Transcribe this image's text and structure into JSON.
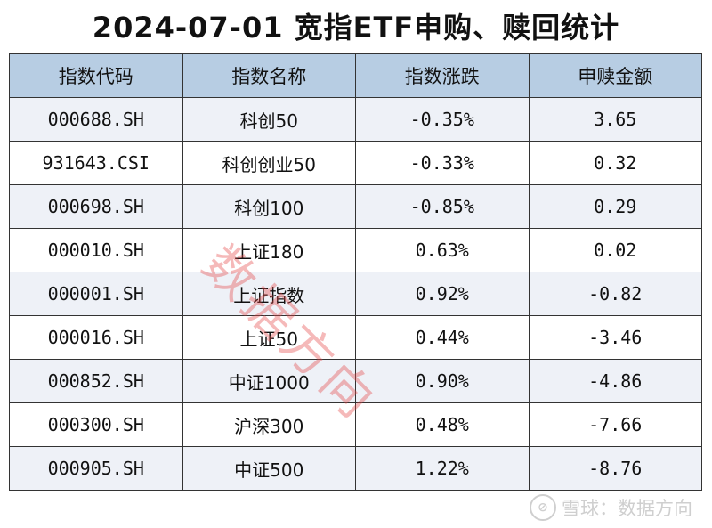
{
  "title": "2024-07-01 宽指ETF申购、赎回统计",
  "table": {
    "headers": [
      "指数代码",
      "指数名称",
      "指数涨跌",
      "申赎金额"
    ],
    "rows": [
      [
        "000688.SH",
        "科创50",
        "-0.35%",
        "3.65"
      ],
      [
        "931643.CSI",
        "科创创业50",
        "-0.33%",
        "0.32"
      ],
      [
        "000698.SH",
        "科创100",
        "-0.85%",
        "0.29"
      ],
      [
        "000010.SH",
        "上证180",
        "0.63%",
        "0.02"
      ],
      [
        "000001.SH",
        "上证指数",
        "0.92%",
        "-0.82"
      ],
      [
        "000016.SH",
        "上证50",
        "0.44%",
        "-3.46"
      ],
      [
        "000852.SH",
        "中证1000",
        "0.90%",
        "-4.86"
      ],
      [
        "000300.SH",
        "沪深300",
        "0.48%",
        "-7.66"
      ],
      [
        "000905.SH",
        "中证500",
        "1.22%",
        "-8.76"
      ]
    ]
  },
  "watermark": "数据方向",
  "brand": {
    "logo_glyph": "⊘",
    "text": "雪球：数据方向"
  },
  "colors": {
    "header_bg": "#b7cde3",
    "alt_row_bg": "#eef1f7",
    "watermark": "#e64646"
  }
}
